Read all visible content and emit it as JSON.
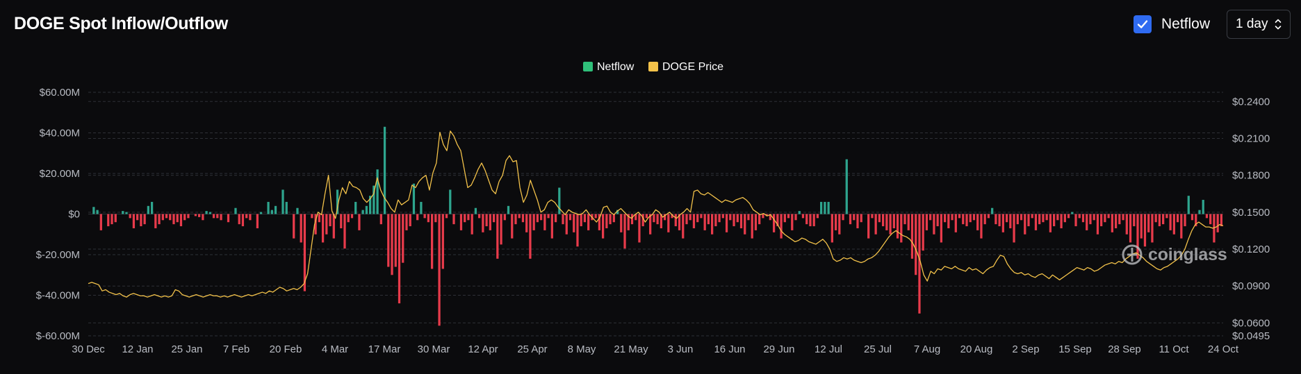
{
  "header": {
    "title": "DOGE Spot Inflow/Outflow"
  },
  "controls": {
    "netflow_label": "Netflow",
    "netflow_checked": true,
    "interval_value": "1 day"
  },
  "watermark": {
    "text": "coinglass"
  },
  "colors": {
    "background": "#0b0b0d",
    "positive": "#2ea58e",
    "negative": "#e83b4b",
    "price_line": "#f3c24a",
    "grid": "#2e3036",
    "axis_text": "#b9bcc3",
    "checkbox": "#2f6bf1"
  },
  "chart_data": {
    "type": "bar",
    "title": "DOGE Spot Inflow/Outflow",
    "legend": [
      "Netflow",
      "DOGE Price"
    ],
    "legend_placement": "top-center",
    "x_tick_labels": [
      "30 Dec",
      "12 Jan",
      "25 Jan",
      "7 Feb",
      "20 Feb",
      "4 Mar",
      "17 Mar",
      "30 Mar",
      "12 Apr",
      "25 Apr",
      "8 May",
      "21 May",
      "3 Jun",
      "16 Jun",
      "29 Jun",
      "12 Jul",
      "25 Jul",
      "7 Aug",
      "20 Aug",
      "2 Sep",
      "15 Sep",
      "28 Sep",
      "11 Oct",
      "24 Oct"
    ],
    "left_axis": {
      "unit": "USD",
      "range": [
        -60,
        60
      ],
      "ticks": [
        "$60.00M",
        "$40.00M",
        "$20.00M",
        "$0",
        "$-20.00M",
        "$-40.00M",
        "$-60.00M"
      ]
    },
    "right_axis": {
      "unit": "USD",
      "range": [
        0.0495,
        0.2475
      ],
      "ticks": [
        "$0.2400",
        "$0.2100",
        "$0.1800",
        "$0.1500",
        "$0.1200",
        "$0.0900",
        "$0.0600",
        "$0.0495"
      ],
      "tick_values": [
        0.24,
        0.21,
        0.18,
        0.15,
        0.12,
        0.09,
        0.06,
        0.0495
      ]
    },
    "grid": true,
    "series": [
      {
        "name": "Netflow",
        "unit": "USD millions",
        "axis": "left",
        "values": [
          0,
          3.5,
          2,
          -8,
          0,
          -6,
          -5,
          -4,
          0,
          1.5,
          1,
          -2,
          -7,
          -3,
          -6,
          -5,
          4,
          6,
          -7,
          -5,
          -3,
          -2,
          -3,
          -5,
          -4,
          -6,
          -3,
          -2,
          0,
          -1,
          -1.5,
          -3,
          1.5,
          1,
          -2,
          -2,
          -3,
          0,
          -4,
          0,
          3,
          -5,
          -6,
          -2,
          -3,
          0,
          -7,
          1,
          0,
          6,
          2,
          4,
          0,
          12,
          6,
          0,
          -12,
          3,
          -14,
          -38,
          0,
          -2,
          -10,
          -4,
          -14,
          -10,
          -6,
          -12,
          12,
          -7,
          -17,
          -4,
          -2,
          6,
          -8,
          2,
          4,
          9,
          14,
          22,
          -5,
          43,
          -26,
          -30,
          -26,
          -44,
          -24,
          -8,
          -6,
          15,
          -3,
          6,
          -2,
          -4,
          -27,
          -4,
          -55,
          -27,
          -2,
          12,
          -5,
          0,
          -8,
          -4,
          -3,
          -10,
          3,
          -2,
          -9,
          -6,
          -8,
          -4,
          -22,
          -15,
          -3,
          4,
          -12,
          -5,
          -2,
          -4,
          -9,
          -22,
          -8,
          -4,
          -3,
          -8,
          -2,
          -12,
          -4,
          13,
          -5,
          -10,
          -3,
          -9,
          -16,
          -6,
          -4,
          -8,
          -3,
          -2,
          -8,
          -12,
          -7,
          -5,
          -4,
          2,
          -9,
          -17,
          -8,
          -5,
          -3,
          -14,
          -6,
          -2,
          -10,
          -4,
          -5,
          -7,
          -3,
          -9,
          -2,
          -6,
          -8,
          -12,
          -5,
          -3,
          -7,
          -4,
          -2,
          -8,
          -5,
          -10,
          -6,
          -4,
          -2,
          -9,
          -3,
          -6,
          -4,
          -7,
          -10,
          -3,
          -12,
          -8,
          -5,
          -2,
          -1,
          -3,
          -9,
          -6,
          -12,
          -4,
          -2,
          -8,
          -3,
          1.5,
          -2,
          -5,
          -6,
          -6,
          -2,
          6,
          6,
          6,
          -14,
          -8,
          -10,
          -3,
          27,
          -5,
          -3,
          -7,
          -4,
          0,
          -12,
          -2,
          -10,
          -4,
          -6,
          -8,
          -10,
          -7,
          -12,
          -14,
          -5,
          -8,
          -22,
          -30,
          -49,
          -18,
          -8,
          -3,
          -10,
          -6,
          -14,
          -4,
          -7,
          -3,
          -9,
          -2,
          -5,
          -6,
          -4,
          -3,
          -8,
          -12,
          -5,
          -2,
          3,
          -5,
          -6,
          -9,
          -4,
          -7,
          -14,
          -5,
          -3,
          -10,
          -6,
          -2,
          -8,
          -5,
          -4,
          -3,
          -9,
          -6,
          -3,
          -7,
          -4,
          -2,
          1,
          -6,
          -2,
          -4,
          -8,
          -5,
          -3,
          -10,
          -6,
          -4,
          -2,
          -9,
          -7,
          -5,
          -3,
          -10,
          -14,
          -6,
          -22,
          -12,
          -16,
          -9,
          -14,
          -4,
          -6,
          -5,
          -2,
          -8,
          -10,
          -4,
          -12,
          -6,
          9,
          -3,
          -6,
          2,
          7,
          -2,
          -5,
          -14,
          -9,
          -6
        ]
      },
      {
        "name": "DOGE Price",
        "unit": "USD",
        "axis": "right",
        "values": [
          0.092,
          0.093,
          0.092,
          0.091,
          0.086,
          0.087,
          0.085,
          0.084,
          0.083,
          0.084,
          0.082,
          0.081,
          0.083,
          0.084,
          0.083,
          0.082,
          0.082,
          0.081,
          0.082,
          0.083,
          0.082,
          0.081,
          0.082,
          0.081,
          0.082,
          0.087,
          0.086,
          0.083,
          0.082,
          0.081,
          0.082,
          0.083,
          0.082,
          0.081,
          0.082,
          0.083,
          0.082,
          0.082,
          0.081,
          0.082,
          0.081,
          0.082,
          0.083,
          0.082,
          0.081,
          0.082,
          0.083,
          0.082,
          0.083,
          0.084,
          0.085,
          0.084,
          0.086,
          0.085,
          0.087,
          0.089,
          0.088,
          0.086,
          0.087,
          0.088,
          0.087,
          0.089,
          0.092,
          0.1,
          0.12,
          0.14,
          0.15,
          0.148,
          0.165,
          0.18,
          0.151,
          0.145,
          0.16,
          0.17,
          0.165,
          0.175,
          0.171,
          0.17,
          0.168,
          0.161,
          0.158,
          0.161,
          0.165,
          0.178,
          0.168,
          0.162,
          0.158,
          0.153,
          0.15,
          0.16,
          0.156,
          0.158,
          0.16,
          0.172,
          0.17,
          0.175,
          0.178,
          0.18,
          0.168,
          0.182,
          0.19,
          0.215,
          0.205,
          0.2,
          0.216,
          0.212,
          0.205,
          0.2,
          0.185,
          0.17,
          0.172,
          0.178,
          0.185,
          0.19,
          0.184,
          0.176,
          0.168,
          0.165,
          0.175,
          0.18,
          0.192,
          0.196,
          0.191,
          0.192,
          0.17,
          0.158,
          0.164,
          0.176,
          0.168,
          0.16,
          0.15,
          0.152,
          0.158,
          0.16,
          0.158,
          0.154,
          0.151,
          0.148,
          0.152,
          0.15,
          0.149,
          0.148,
          0.149,
          0.152,
          0.148,
          0.145,
          0.142,
          0.146,
          0.154,
          0.155,
          0.15,
          0.148,
          0.151,
          0.153,
          0.15,
          0.147,
          0.145,
          0.148,
          0.15,
          0.147,
          0.142,
          0.146,
          0.148,
          0.152,
          0.15,
          0.146,
          0.148,
          0.15,
          0.147,
          0.145,
          0.148,
          0.15,
          0.153,
          0.15,
          0.167,
          0.168,
          0.165,
          0.164,
          0.166,
          0.164,
          0.162,
          0.16,
          0.158,
          0.16,
          0.159,
          0.158,
          0.16,
          0.161,
          0.162,
          0.16,
          0.157,
          0.152,
          0.15,
          0.148,
          0.149,
          0.147,
          0.148,
          0.144,
          0.14,
          0.135,
          0.132,
          0.13,
          0.128,
          0.126,
          0.127,
          0.129,
          0.128,
          0.126,
          0.125,
          0.124,
          0.126,
          0.128,
          0.125,
          0.12,
          0.112,
          0.11,
          0.111,
          0.113,
          0.112,
          0.113,
          0.111,
          0.11,
          0.109,
          0.11,
          0.112,
          0.113,
          0.115,
          0.118,
          0.122,
          0.126,
          0.13,
          0.133,
          0.135,
          0.133,
          0.131,
          0.13,
          0.128,
          0.124,
          0.118,
          0.11,
          0.099,
          0.094,
          0.102,
          0.1,
          0.104,
          0.103,
          0.106,
          0.105,
          0.104,
          0.106,
          0.104,
          0.103,
          0.102,
          0.105,
          0.103,
          0.104,
          0.102,
          0.1,
          0.103,
          0.105,
          0.106,
          0.111,
          0.115,
          0.114,
          0.108,
          0.104,
          0.101,
          0.1,
          0.101,
          0.099,
          0.1,
          0.098,
          0.097,
          0.099,
          0.1,
          0.098,
          0.096,
          0.099,
          0.097,
          0.095,
          0.097,
          0.099,
          0.101,
          0.103,
          0.105,
          0.104,
          0.103,
          0.105,
          0.104,
          0.102,
          0.103,
          0.105,
          0.107,
          0.108,
          0.109,
          0.108,
          0.11,
          0.109,
          0.112,
          0.114,
          0.116,
          0.117,
          0.115,
          0.113,
          0.11,
          0.108,
          0.106,
          0.104,
          0.103,
          0.105,
          0.106,
          0.108,
          0.11,
          0.112,
          0.115,
          0.12,
          0.128,
          0.135,
          0.14,
          0.142,
          0.14,
          0.138,
          0.138,
          0.137,
          0.138,
          0.14,
          0.139
        ]
      }
    ]
  }
}
